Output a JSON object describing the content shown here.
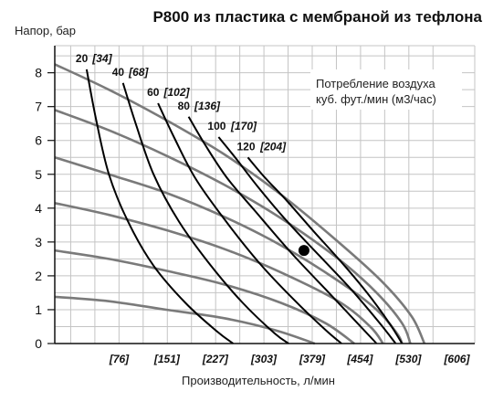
{
  "chart_data": {
    "type": "line",
    "title": "P800 из пластика с мембраной из тефлона",
    "ylabel": "Напор, бар",
    "xlabel": "Производительность, л/мин",
    "ylim": [
      0,
      8.8
    ],
    "xlim": [
      -25,
      634
    ],
    "yticks": [
      0,
      1,
      2,
      3,
      4,
      5,
      6,
      7,
      8
    ],
    "xtick_labels": [
      "[76]",
      "[151]",
      "[227]",
      "[303]",
      "[379]",
      "[454]",
      "[530]",
      "[606]"
    ],
    "xtick_values": [
      76,
      151,
      227,
      303,
      379,
      454,
      530,
      606
    ],
    "grid": true,
    "note_lines": [
      "Потребление воздуха",
      "куб. фут./мин (м3/час)"
    ],
    "pressure_curves": [
      {
        "values": [
          [
            -25,
            8.25
          ],
          [
            60,
            7.5
          ],
          [
            150,
            6.6
          ],
          [
            240,
            5.6
          ],
          [
            330,
            4.4
          ],
          [
            420,
            3.0
          ],
          [
            490,
            1.8
          ],
          [
            535,
            0.8
          ],
          [
            555,
            0.0
          ]
        ]
      },
      {
        "values": [
          [
            -25,
            6.9
          ],
          [
            60,
            6.3
          ],
          [
            150,
            5.55
          ],
          [
            240,
            4.7
          ],
          [
            330,
            3.7
          ],
          [
            420,
            2.5
          ],
          [
            480,
            1.5
          ],
          [
            520,
            0.6
          ],
          [
            533,
            0.0
          ]
        ]
      },
      {
        "values": [
          [
            -25,
            5.5
          ],
          [
            60,
            5.0
          ],
          [
            150,
            4.45
          ],
          [
            240,
            3.75
          ],
          [
            330,
            2.9
          ],
          [
            420,
            1.85
          ],
          [
            480,
            1.0
          ],
          [
            512,
            0.3
          ],
          [
            520,
            0.0
          ]
        ]
      },
      {
        "values": [
          [
            -25,
            4.15
          ],
          [
            60,
            3.8
          ],
          [
            150,
            3.35
          ],
          [
            240,
            2.8
          ],
          [
            330,
            2.1
          ],
          [
            420,
            1.25
          ],
          [
            470,
            0.5
          ],
          [
            490,
            0.0
          ]
        ]
      },
      {
        "values": [
          [
            -25,
            2.75
          ],
          [
            60,
            2.5
          ],
          [
            150,
            2.15
          ],
          [
            240,
            1.75
          ],
          [
            330,
            1.2
          ],
          [
            400,
            0.6
          ],
          [
            445,
            0.0
          ]
        ]
      },
      {
        "values": [
          [
            -25,
            1.38
          ],
          [
            60,
            1.25
          ],
          [
            150,
            1.0
          ],
          [
            240,
            0.75
          ],
          [
            320,
            0.4
          ],
          [
            383,
            0.0
          ]
        ]
      }
    ],
    "air_curves": [
      {
        "label_a": "20",
        "label_b": "[34]",
        "values": [
          [
            25,
            8.1
          ],
          [
            40,
            6.6
          ],
          [
            60,
            5.0
          ],
          [
            90,
            3.6
          ],
          [
            130,
            2.3
          ],
          [
            180,
            1.2
          ],
          [
            230,
            0.35
          ],
          [
            255,
            0.0
          ]
        ]
      },
      {
        "label_a": "40",
        "label_b": "[68]",
        "values": [
          [
            82,
            7.7
          ],
          [
            102,
            6.5
          ],
          [
            130,
            5.0
          ],
          [
            170,
            3.6
          ],
          [
            220,
            2.3
          ],
          [
            270,
            1.2
          ],
          [
            320,
            0.3
          ],
          [
            342,
            0.0
          ]
        ]
      },
      {
        "label_a": "60",
        "label_b": "[102]",
        "values": [
          [
            137,
            7.1
          ],
          [
            162,
            6.1
          ],
          [
            195,
            4.9
          ],
          [
            240,
            3.7
          ],
          [
            295,
            2.4
          ],
          [
            350,
            1.3
          ],
          [
            400,
            0.4
          ],
          [
            425,
            0.0
          ]
        ]
      },
      {
        "label_a": "80",
        "label_b": "[136]",
        "values": [
          [
            185,
            6.7
          ],
          [
            210,
            5.9
          ],
          [
            245,
            4.9
          ],
          [
            290,
            3.9
          ],
          [
            345,
            2.7
          ],
          [
            400,
            1.6
          ],
          [
            450,
            0.6
          ],
          [
            480,
            0.0
          ]
        ]
      },
      {
        "label_a": "100",
        "label_b": "[170]",
        "values": [
          [
            232,
            6.1
          ],
          [
            258,
            5.5
          ],
          [
            295,
            4.6
          ],
          [
            340,
            3.6
          ],
          [
            390,
            2.6
          ],
          [
            440,
            1.6
          ],
          [
            485,
            0.6
          ],
          [
            510,
            0.0
          ]
        ]
      },
      {
        "label_a": "120",
        "label_b": "[204]",
        "values": [
          [
            278,
            5.5
          ],
          [
            305,
            4.9
          ],
          [
            340,
            4.2
          ],
          [
            382,
            3.3
          ],
          [
            425,
            2.4
          ],
          [
            465,
            1.5
          ],
          [
            500,
            0.6
          ],
          [
            520,
            0.0
          ]
        ]
      }
    ],
    "operating_point": {
      "x": 366,
      "y": 2.75
    }
  }
}
